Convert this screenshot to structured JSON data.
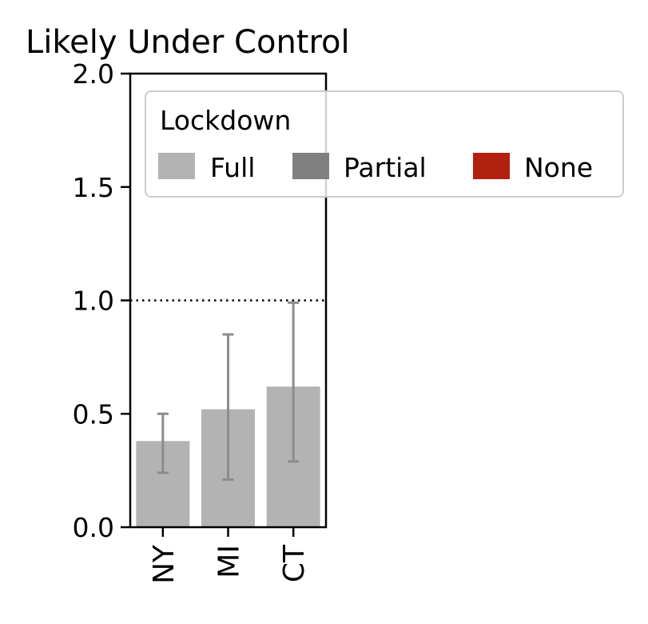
{
  "chart_data": {
    "type": "bar",
    "title": "Likely Under Control",
    "xlabel": "",
    "ylabel": "",
    "categories": [
      "NY",
      "MI",
      "CT"
    ],
    "series": [
      {
        "values": [
          0.38,
          0.52,
          0.62
        ],
        "error_low": [
          0.24,
          0.21,
          0.29
        ],
        "error_high": [
          0.5,
          0.85,
          0.99
        ],
        "lockdown": [
          "Full",
          "Full",
          "Full"
        ]
      }
    ],
    "ylim": [
      0,
      2.0
    ],
    "yticks": [
      "0.0",
      "0.5",
      "1.0",
      "1.5",
      "2.0"
    ],
    "reference_line": {
      "y": 1.0,
      "style": "dotted"
    },
    "grid": false,
    "legend": {
      "title": "Lockdown",
      "placement": "top-right",
      "entries": [
        {
          "label": "Full",
          "color": "#b3b3b3"
        },
        {
          "label": "Partial",
          "color": "#808080"
        },
        {
          "label": "None",
          "color": "#b22010"
        }
      ]
    },
    "colors": {
      "Full": "#b3b3b3",
      "Partial": "#808080",
      "None": "#b22010",
      "error_bar": "#8c8c8c"
    }
  }
}
